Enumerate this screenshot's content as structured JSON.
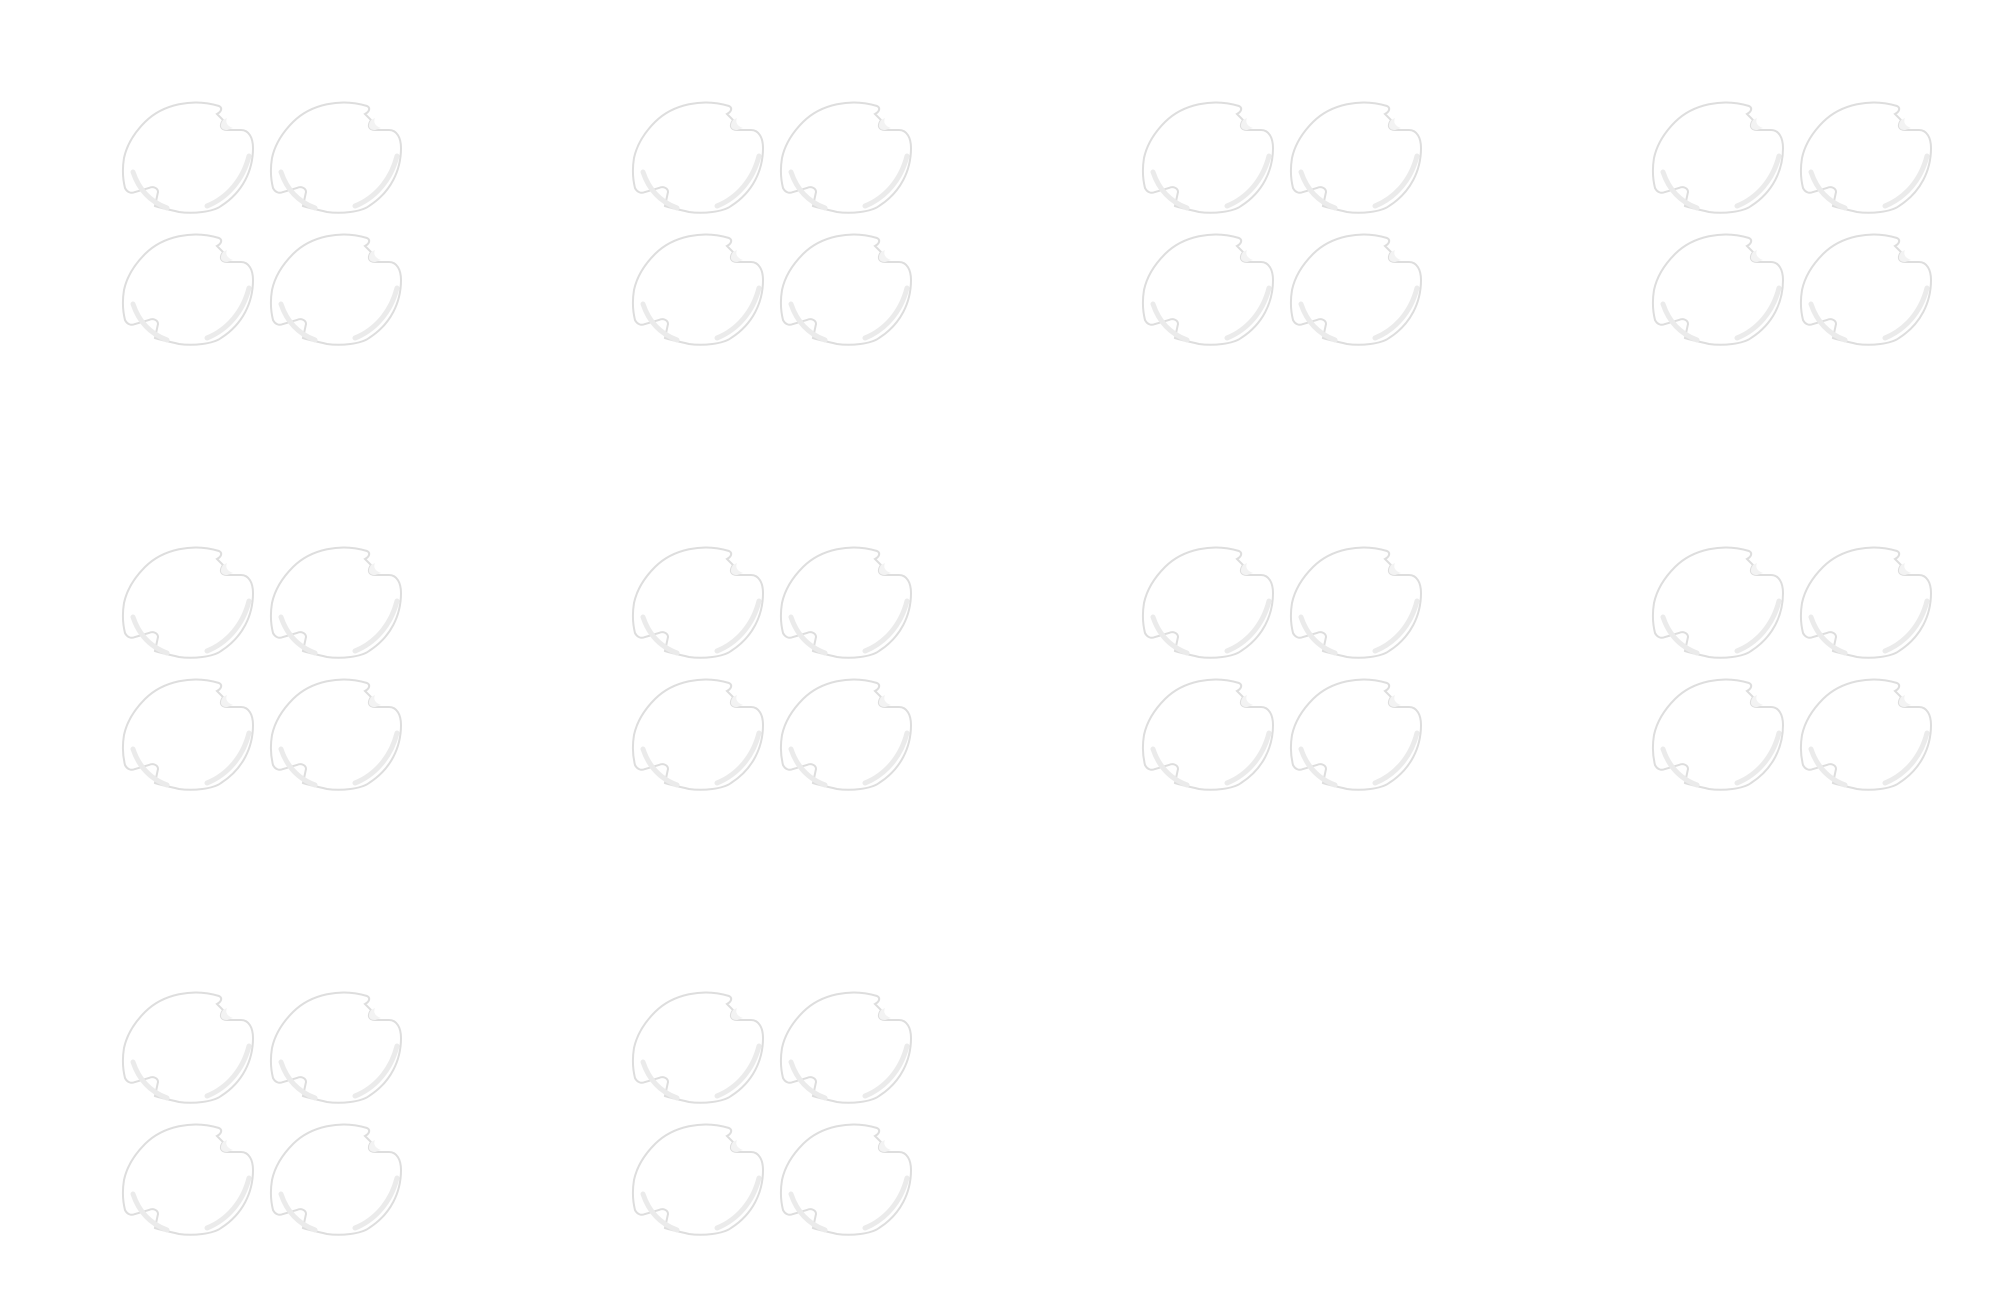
{
  "product_grid": {
    "rows": [
      [
        {
          "item": "socket-cover-set",
          "covers": 4
        },
        {
          "item": "socket-cover-set",
          "covers": 4
        },
        {
          "item": "socket-cover-set",
          "covers": 4
        },
        {
          "item": "socket-cover-set",
          "covers": 4
        }
      ],
      [
        {
          "item": "socket-cover-set",
          "covers": 4
        },
        {
          "item": "socket-cover-set",
          "covers": 4
        },
        {
          "item": "socket-cover-set",
          "covers": 4
        },
        {
          "item": "socket-cover-set",
          "covers": 4
        }
      ],
      [
        {
          "item": "socket-cover-set",
          "covers": 4
        },
        {
          "item": "socket-cover-set",
          "covers": 4
        }
      ]
    ],
    "colors": {
      "background": "#ffffff",
      "cover_fill": "#ffffff",
      "cover_outline": "#dedede",
      "cover_shadow": "#ebebeb",
      "notch_fill": "#f3f3f3"
    }
  }
}
